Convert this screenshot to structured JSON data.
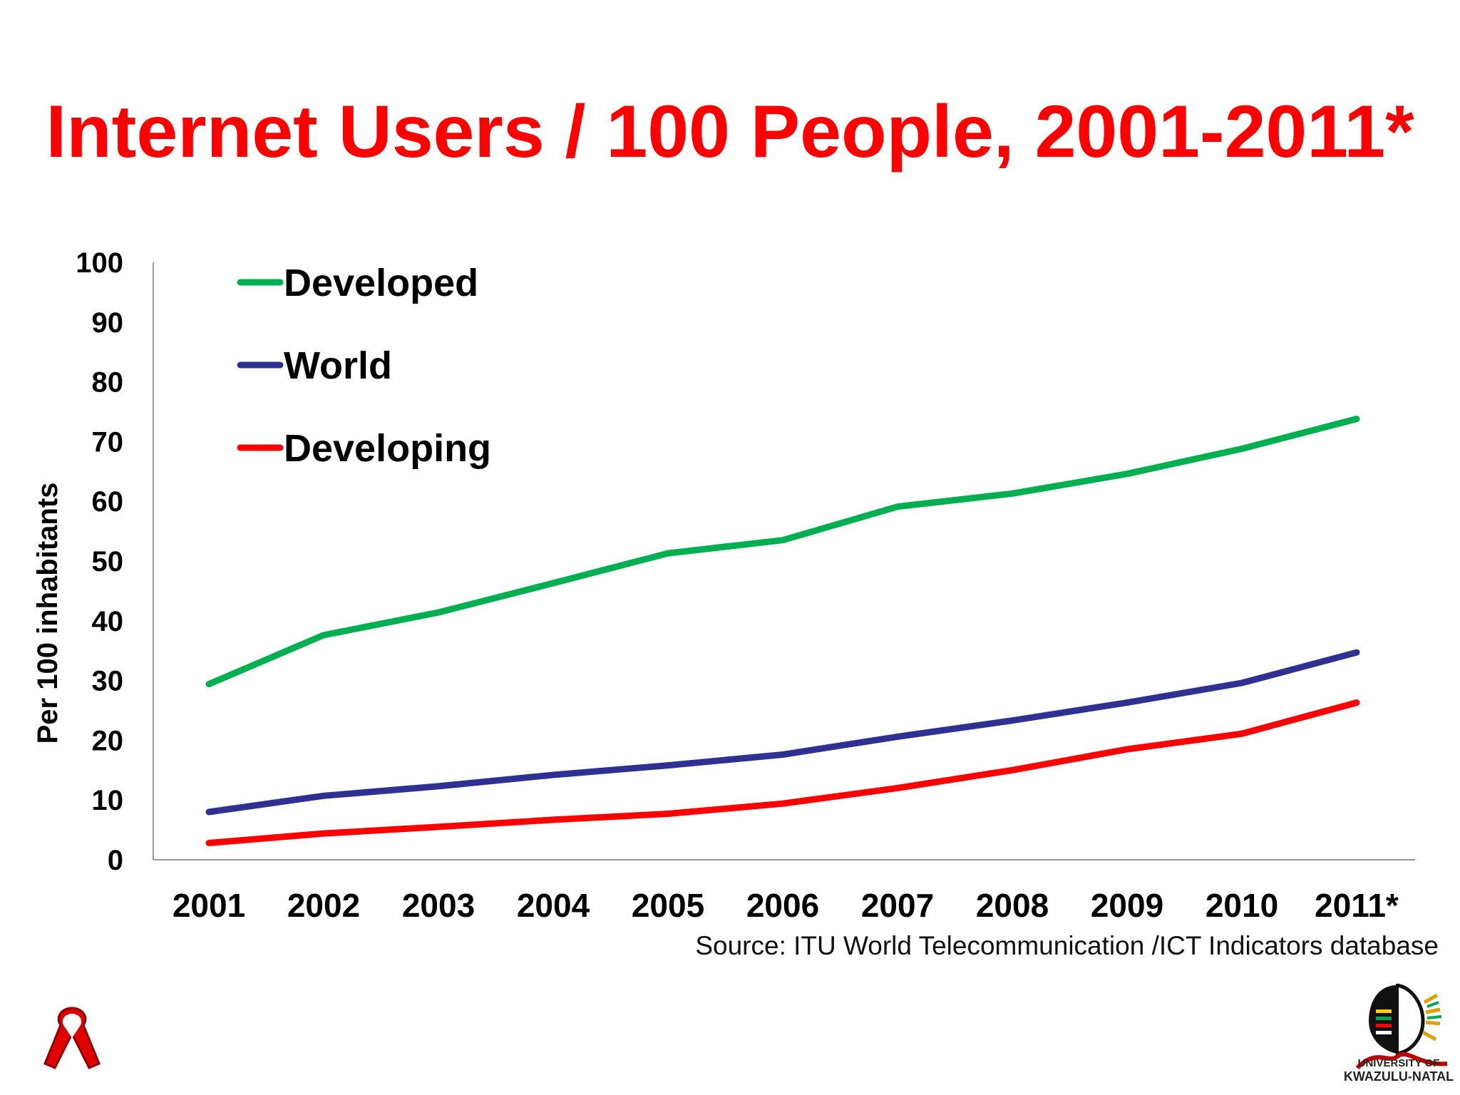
{
  "slide": {
    "title": "Internet Users / 100 People, 2001-2011*",
    "source": "Source:  ITU World Telecommunication /ICT Indicators database"
  },
  "logo": {
    "line1": "UNIVERSITY OF",
    "line2": "KWAZULU-NATAL"
  },
  "colors": {
    "title": "#ff0000",
    "developed": "#00b050",
    "world": "#2e3192",
    "developing": "#ff0000"
  },
  "chart_data": {
    "type": "line",
    "title": "",
    "xlabel": "",
    "ylabel": "Per 100 inhabitants",
    "categories": [
      "2001",
      "2002",
      "2003",
      "2004",
      "2005",
      "2006",
      "2007",
      "2008",
      "2009",
      "2010",
      "2011*"
    ],
    "ylim": [
      0,
      100
    ],
    "yticks": [
      0,
      10,
      20,
      30,
      40,
      50,
      60,
      70,
      80,
      90,
      100
    ],
    "grid": false,
    "legend": "top-left",
    "series": [
      {
        "name": "Developed",
        "color": "#00b050",
        "values": [
          29.4,
          37.6,
          41.4,
          46.3,
          51.3,
          53.5,
          59.1,
          61.3,
          64.6,
          68.8,
          73.8
        ]
      },
      {
        "name": "World",
        "color": "#2e3192",
        "values": [
          8.0,
          10.7,
          12.3,
          14.2,
          15.8,
          17.6,
          20.6,
          23.3,
          26.3,
          29.6,
          34.7
        ]
      },
      {
        "name": "Developing",
        "color": "#ff0000",
        "values": [
          2.8,
          4.4,
          5.5,
          6.7,
          7.7,
          9.4,
          12.0,
          15.0,
          18.5,
          21.1,
          26.3
        ]
      }
    ]
  }
}
